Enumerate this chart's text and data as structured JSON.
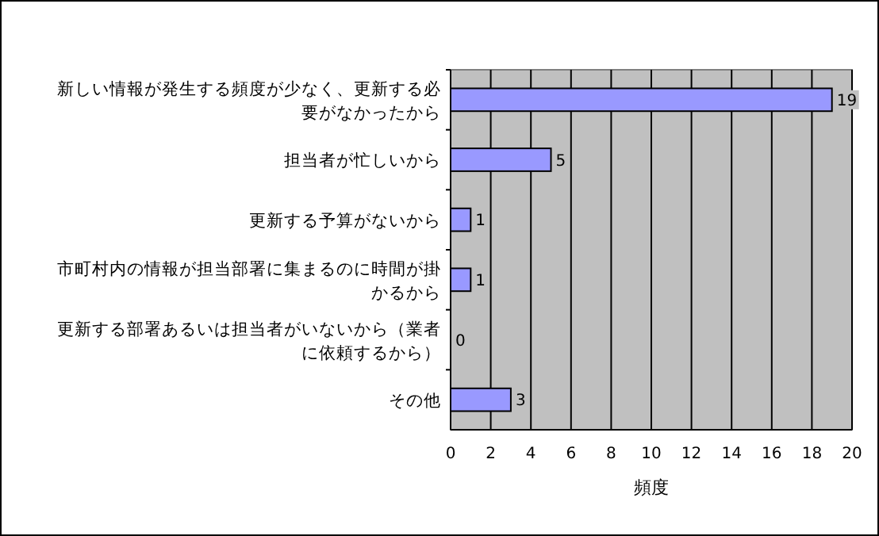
{
  "chart_data": {
    "type": "bar",
    "orientation": "horizontal",
    "xlabel": "頻度",
    "categories": [
      "新しい情報が発生する頻度が少なく、更新する必要がなかったから",
      "担当者が忙しいから",
      "更新する予算がないから",
      "市町村内の情報が担当部署に集まるのに時間が掛かるから",
      "更新する部署あるいは担当者がいないから（業者に依頼するから）",
      "その他"
    ],
    "values": [
      19,
      5,
      1,
      1,
      0,
      3
    ],
    "color": "#9999ff",
    "xlim": [
      0,
      20
    ],
    "xticks": [
      0,
      2,
      4,
      6,
      8,
      10,
      12,
      14,
      16,
      18,
      20
    ],
    "grid": "x",
    "data_labels": true
  }
}
